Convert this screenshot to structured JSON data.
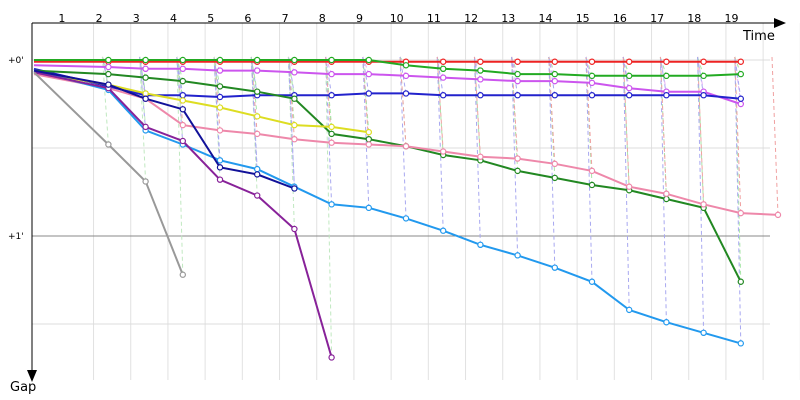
{
  "chart_data": {
    "type": "line",
    "chart_kind": "race gap chart",
    "xlabel": "Time",
    "ylabel": "Gap",
    "x_ticks": [
      "1",
      "2",
      "3",
      "4",
      "5",
      "6",
      "7",
      "8",
      "9",
      "10",
      "11",
      "12",
      "13",
      "14",
      "15",
      "16",
      "17",
      "18",
      "19"
    ],
    "y_ticks": [
      {
        "value": 0,
        "label": "+0'"
      },
      {
        "value": 1,
        "label": "+1'"
      }
    ],
    "xlim": [
      0,
      20
    ],
    "ylim": [
      0,
      1.8
    ],
    "grid": true,
    "legend": "none",
    "marker": "hollow-circle",
    "series": [
      {
        "color": "#ee2222",
        "trend_color": "#f0a0a0",
        "points": [
          [
            0,
            0.01
          ],
          [
            2,
            0.01
          ],
          [
            3,
            0.01
          ],
          [
            4,
            0.01
          ],
          [
            5,
            0.01
          ],
          [
            6,
            0.01
          ],
          [
            7,
            0.01
          ],
          [
            8,
            0.01
          ],
          [
            9,
            0.01
          ],
          [
            10,
            0.01
          ],
          [
            11,
            0.01
          ],
          [
            12,
            0.01
          ],
          [
            13,
            0.01
          ],
          [
            14,
            0.01
          ],
          [
            15,
            0.01
          ],
          [
            16,
            0.01
          ],
          [
            17,
            0.01
          ],
          [
            18,
            0.01
          ],
          [
            19,
            0.01
          ]
        ]
      },
      {
        "color": "#22aa22",
        "trend_color": "#a8e6a8",
        "points": [
          [
            0,
            0.0
          ],
          [
            2,
            0.0
          ],
          [
            3,
            0.0
          ],
          [
            4,
            0.0
          ],
          [
            5,
            0.0
          ],
          [
            6,
            0.0
          ],
          [
            7,
            0.0
          ],
          [
            8,
            0.0
          ],
          [
            9,
            0.0
          ],
          [
            10,
            0.03
          ],
          [
            11,
            0.05
          ],
          [
            12,
            0.06
          ],
          [
            13,
            0.08
          ],
          [
            14,
            0.08
          ],
          [
            15,
            0.09
          ],
          [
            16,
            0.09
          ],
          [
            17,
            0.09
          ],
          [
            18,
            0.09
          ],
          [
            19,
            0.08
          ]
        ]
      },
      {
        "color": "#cc55ee",
        "trend_color": "#e6b0f5",
        "points": [
          [
            0,
            0.03
          ],
          [
            2,
            0.04
          ],
          [
            3,
            0.05
          ],
          [
            4,
            0.05
          ],
          [
            5,
            0.06
          ],
          [
            6,
            0.06
          ],
          [
            7,
            0.07
          ],
          [
            8,
            0.08
          ],
          [
            9,
            0.08
          ],
          [
            10,
            0.09
          ],
          [
            11,
            0.1
          ],
          [
            12,
            0.11
          ],
          [
            13,
            0.12
          ],
          [
            14,
            0.12
          ],
          [
            15,
            0.13
          ],
          [
            16,
            0.16
          ],
          [
            17,
            0.18
          ],
          [
            18,
            0.18
          ],
          [
            19,
            0.25
          ]
        ]
      },
      {
        "color": "#2222cc",
        "trend_color": "#a8a8f0",
        "points": [
          [
            0,
            0.05
          ],
          [
            2,
            0.15
          ],
          [
            3,
            0.2
          ],
          [
            4,
            0.2
          ],
          [
            5,
            0.21
          ],
          [
            6,
            0.2
          ],
          [
            7,
            0.2
          ],
          [
            8,
            0.2
          ],
          [
            9,
            0.19
          ],
          [
            10,
            0.19
          ],
          [
            11,
            0.2
          ],
          [
            12,
            0.2
          ],
          [
            13,
            0.2
          ],
          [
            14,
            0.2
          ],
          [
            15,
            0.2
          ],
          [
            16,
            0.2
          ],
          [
            17,
            0.2
          ],
          [
            18,
            0.2
          ],
          [
            19,
            0.22
          ]
        ]
      },
      {
        "color": "#228822",
        "trend_color": "#a8e6a8",
        "points": [
          [
            0,
            0.06
          ],
          [
            2,
            0.08
          ],
          [
            3,
            0.1
          ],
          [
            4,
            0.12
          ],
          [
            5,
            0.15
          ],
          [
            6,
            0.18
          ],
          [
            7,
            0.22
          ],
          [
            8,
            0.42
          ],
          [
            9,
            0.45
          ],
          [
            10,
            0.49
          ],
          [
            11,
            0.54
          ],
          [
            12,
            0.57
          ],
          [
            13,
            0.63
          ],
          [
            14,
            0.67
          ],
          [
            15,
            0.71
          ],
          [
            16,
            0.74
          ],
          [
            17,
            0.79
          ],
          [
            18,
            0.84
          ],
          [
            19,
            1.26
          ]
        ]
      },
      {
        "color": "#dddd22",
        "trend_color": "#a8e6a8",
        "points": [
          [
            0,
            0.07
          ],
          [
            2,
            0.14
          ],
          [
            3,
            0.19
          ],
          [
            4,
            0.23
          ],
          [
            5,
            0.27
          ],
          [
            6,
            0.32
          ],
          [
            7,
            0.37
          ],
          [
            8,
            0.38
          ],
          [
            9,
            0.41
          ]
        ]
      },
      {
        "color": "#ee88aa",
        "trend_color": "#f0a0a0",
        "points": [
          [
            0,
            0.08
          ],
          [
            2,
            0.16
          ],
          [
            3,
            0.22
          ],
          [
            4,
            0.37
          ],
          [
            5,
            0.4
          ],
          [
            6,
            0.42
          ],
          [
            7,
            0.45
          ],
          [
            8,
            0.47
          ],
          [
            9,
            0.48
          ],
          [
            10,
            0.49
          ],
          [
            11,
            0.52
          ],
          [
            12,
            0.55
          ],
          [
            13,
            0.56
          ],
          [
            14,
            0.59
          ],
          [
            15,
            0.63
          ],
          [
            16,
            0.72
          ],
          [
            17,
            0.76
          ],
          [
            18,
            0.82
          ],
          [
            19,
            0.87
          ],
          [
            20,
            0.88
          ]
        ]
      },
      {
        "color": "#2299ee",
        "trend_color": "#a8a8f0",
        "points": [
          [
            0,
            0.06
          ],
          [
            2,
            0.17
          ],
          [
            3,
            0.4
          ],
          [
            4,
            0.48
          ],
          [
            5,
            0.57
          ],
          [
            6,
            0.62
          ],
          [
            7,
            0.72
          ],
          [
            8,
            0.82
          ],
          [
            9,
            0.84
          ],
          [
            10,
            0.9
          ],
          [
            11,
            0.97
          ],
          [
            12,
            1.05
          ],
          [
            13,
            1.11
          ],
          [
            14,
            1.18
          ],
          [
            15,
            1.26
          ],
          [
            16,
            1.42
          ],
          [
            17,
            1.49
          ],
          [
            18,
            1.55
          ],
          [
            19,
            1.61
          ]
        ]
      },
      {
        "color": "#882299",
        "trend_color": "#c0e8c0",
        "points": [
          [
            0,
            0.07
          ],
          [
            2,
            0.16
          ],
          [
            3,
            0.38
          ],
          [
            4,
            0.46
          ],
          [
            5,
            0.68
          ],
          [
            6,
            0.77
          ],
          [
            7,
            0.96
          ],
          [
            8,
            1.69
          ]
        ]
      },
      {
        "color": "#111199",
        "trend_color": "#a8a8f0",
        "points": [
          [
            0,
            0.06
          ],
          [
            2,
            0.14
          ],
          [
            3,
            0.22
          ],
          [
            4,
            0.28
          ],
          [
            5,
            0.61
          ],
          [
            6,
            0.65
          ],
          [
            7,
            0.73
          ]
        ]
      },
      {
        "color": "#999999",
        "trend_color": "#c0e8c0",
        "points": [
          [
            0,
            0.07
          ],
          [
            2,
            0.48
          ],
          [
            3,
            0.69
          ],
          [
            4,
            1.22
          ]
        ]
      }
    ]
  }
}
